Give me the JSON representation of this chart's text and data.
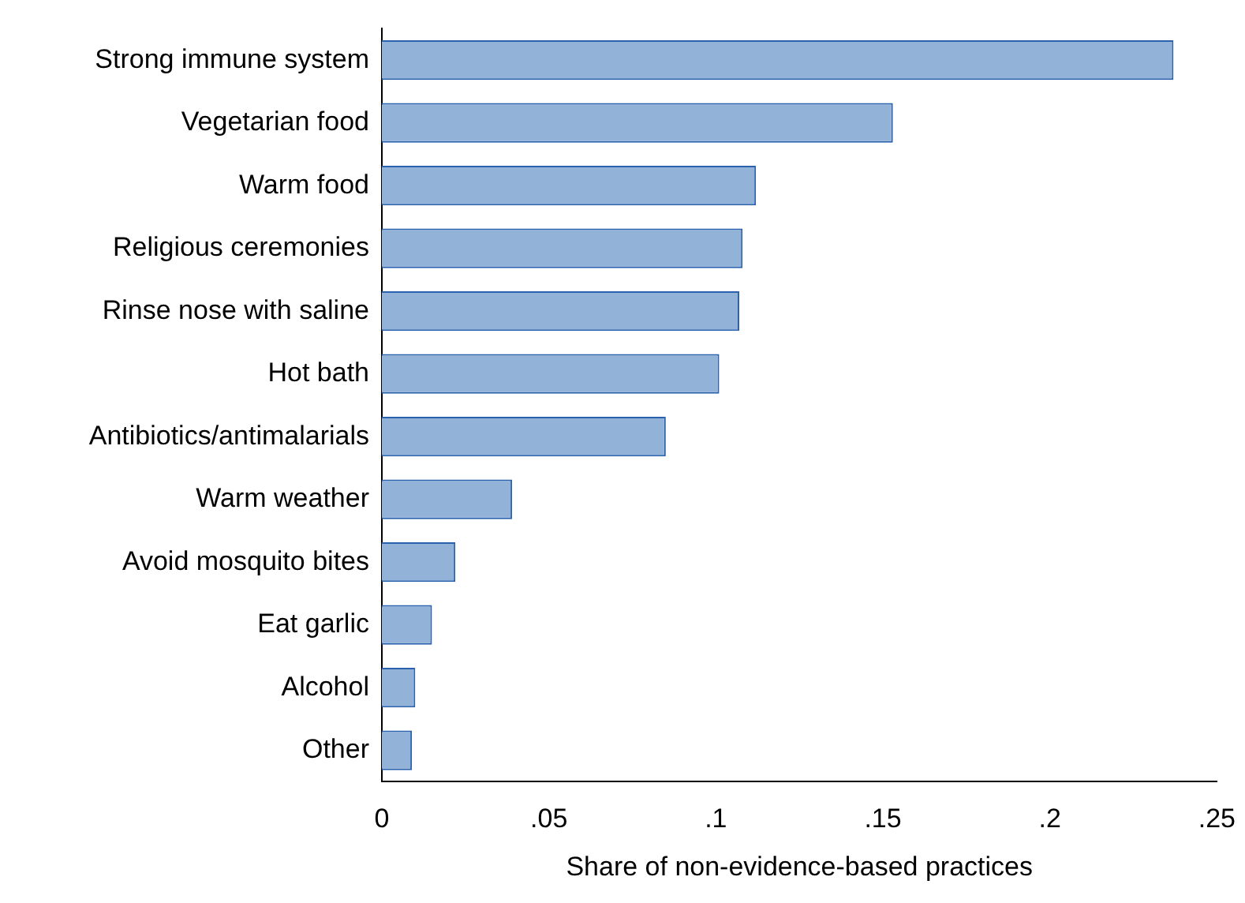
{
  "chart_data": {
    "type": "bar",
    "orientation": "horizontal",
    "xlabel": "Share of non-evidence-based practices",
    "categories": [
      "Strong immune system",
      "Vegetarian food",
      "Warm food",
      "Religious ceremonies",
      "Rinse nose with saline",
      "Hot bath",
      "Antibiotics/antimalarials",
      "Warm weather",
      "Avoid mosquito bites",
      "Eat garlic",
      "Alcohol",
      "Other"
    ],
    "values": [
      0.237,
      0.153,
      0.112,
      0.108,
      0.107,
      0.101,
      0.085,
      0.039,
      0.022,
      0.015,
      0.01,
      0.009
    ],
    "color": "#92b2d8",
    "xlim": [
      0,
      0.25
    ],
    "xticks": [
      0,
      {
        "value": 0.05,
        "label": ".05"
      },
      {
        "value": 0.1,
        "label": ".1"
      },
      {
        "value": 0.15,
        "label": ".15"
      },
      {
        "value": 0.2,
        "label": ".2"
      },
      {
        "value": 0.25,
        "label": ".25"
      }
    ],
    "grid": false,
    "legend": false
  }
}
